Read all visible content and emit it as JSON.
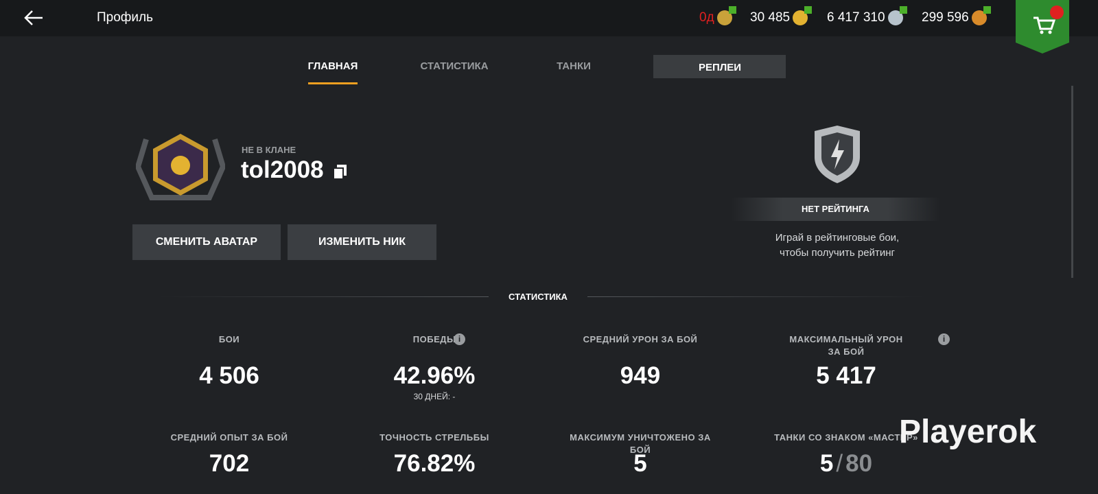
{
  "header": {
    "title": "Профиль",
    "currencies": [
      "0д",
      "30 485",
      "6 417 310",
      "299 596"
    ]
  },
  "tabs": [
    "ГЛАВНАЯ",
    "СТАТИСТИКА",
    "ТАНКИ",
    "РЕПЛЕИ"
  ],
  "profile": {
    "clan": "НЕ В КЛАНЕ",
    "nickname": "tol2008",
    "buttons": [
      "СМЕНИТЬ АВАТАР",
      "ИЗМЕНИТЬ НИК"
    ]
  },
  "rating": {
    "status": "НЕТ РЕЙТИНГА",
    "hint_lines": [
      "Играй в рейтинговые бои,",
      "чтобы получить рейтинг"
    ]
  },
  "stats": {
    "title": "СТАТИСТИКА",
    "items": [
      {
        "label": "БОИ",
        "value": "4 506"
      },
      {
        "label": "ПОБЕДЫ",
        "value": "42.96%",
        "note": "30 ДНЕЙ: -"
      },
      {
        "label": "СРЕДНИЙ УРОН ЗА БОЙ",
        "value": "949"
      },
      {
        "label": "МАКСИМАЛЬНЫЙ УРОН ЗА БОЙ",
        "value": "5 417"
      },
      {
        "label": "СРЕДНИЙ ОПЫТ ЗА БОЙ",
        "value": "702"
      },
      {
        "label": "ТОЧНОСТЬ СТРЕЛЬБЫ",
        "value": "76.82%"
      },
      {
        "label": "МАКСИМУМ УНИЧТОЖЕНО ЗА БОЙ",
        "value": "5"
      },
      {
        "label": "ТАНКИ СО ЗНАКОМ «МАСТЕР»",
        "value": "5",
        "separator": "/",
        "total": "80"
      }
    ]
  },
  "watermark": "Playerok"
}
